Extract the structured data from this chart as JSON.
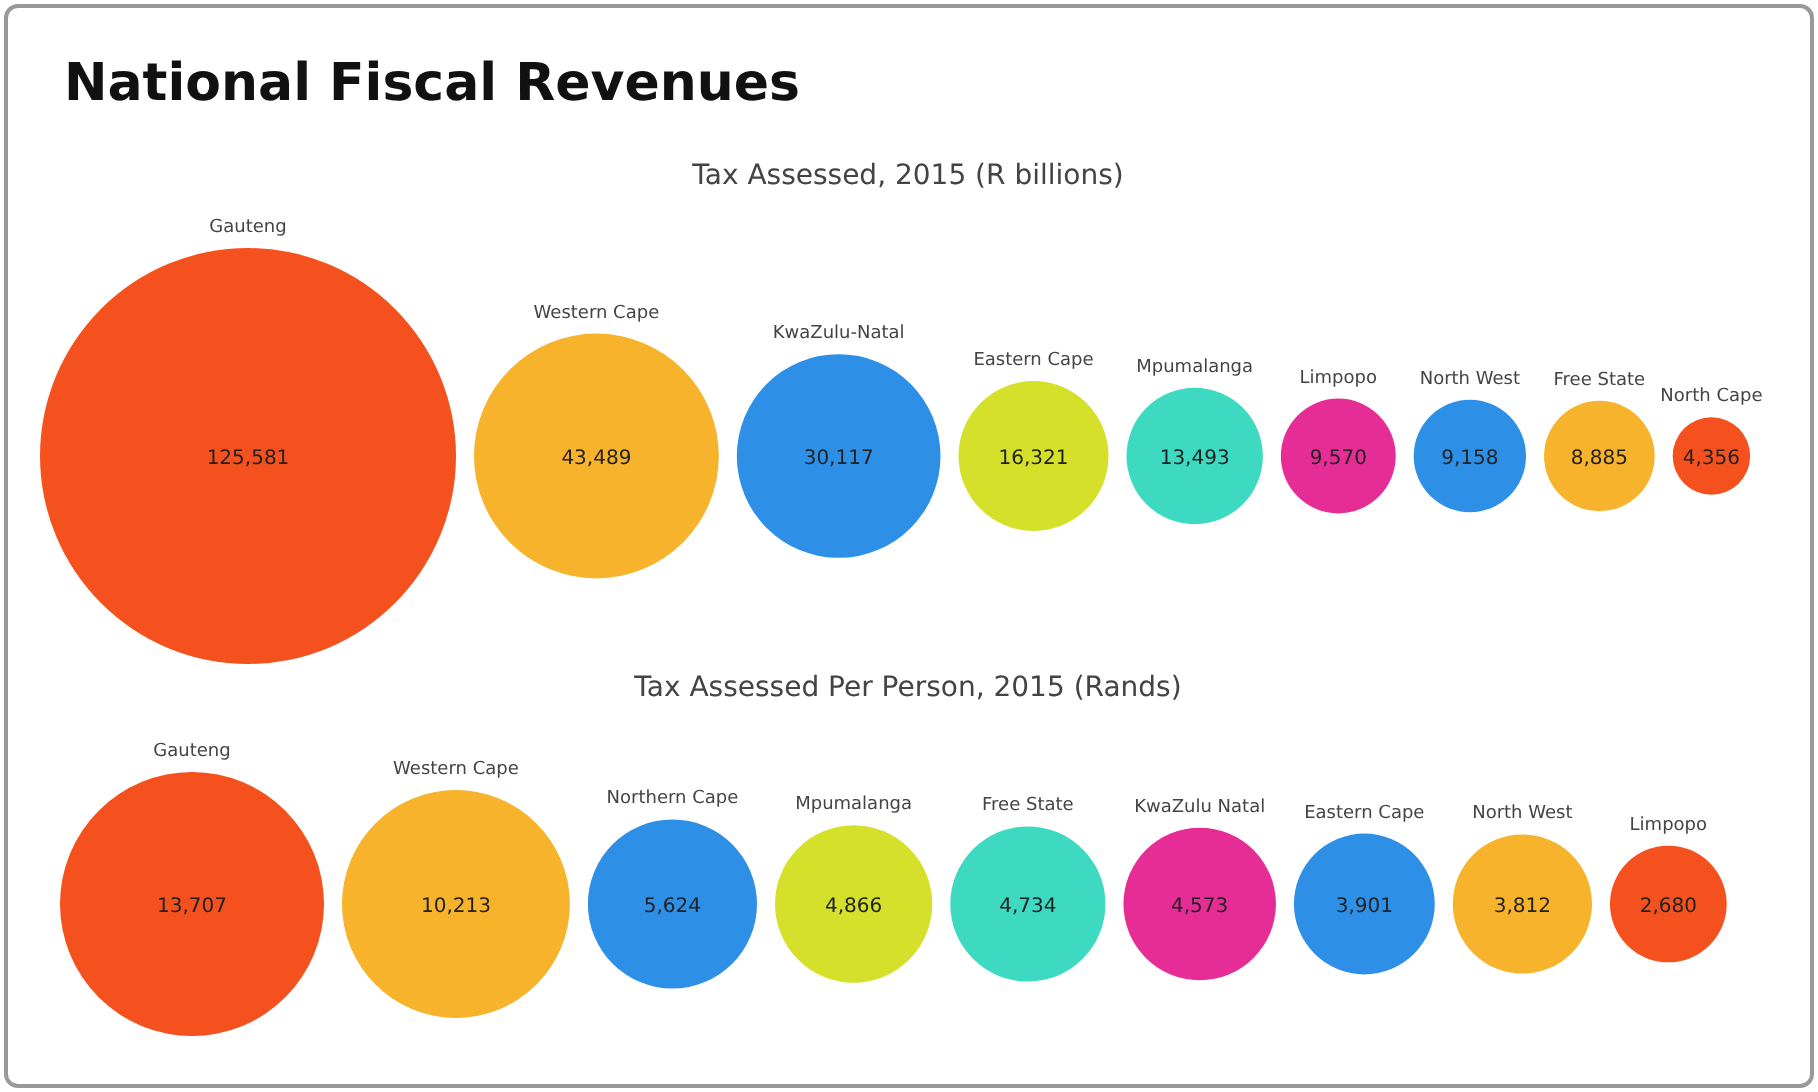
{
  "chart_data": [
    {
      "type": "other",
      "title": "National Fiscal Revenues",
      "subtitle": "Tax Assessed, 2015 (R billions)",
      "categories": [
        "Gauteng",
        "Western Cape",
        "KwaZulu-Natal",
        "Eastern Cape",
        "Mpumalanga",
        "Limpopo",
        "North West",
        "Free State",
        "North Cape"
      ],
      "values": [
        125581,
        43489,
        30117,
        16321,
        13493,
        9570,
        9158,
        8885,
        4356
      ],
      "value_labels": [
        "125,581",
        "43,489",
        "30,117",
        "16,321",
        "13,493",
        "9,570",
        "9,158",
        "8,885",
        "4,356"
      ],
      "colors": [
        "#f4511e",
        "#f6b32b",
        "#2e8fe6",
        "#d4e02a",
        "#3dd9c1",
        "#e62d95",
        "#2e8fe6",
        "#f6b32b",
        "#f4511e"
      ]
    },
    {
      "type": "other",
      "title": "Tax Assessed Per Person, 2015 (Rands)",
      "categories": [
        "Gauteng",
        "Western Cape",
        "Northern Cape",
        "Mpumalanga",
        "Free State",
        "KwaZulu Natal",
        "Eastern Cape",
        "North West",
        "Limpopo"
      ],
      "values": [
        13707,
        10213,
        5624,
        4866,
        4734,
        4573,
        3901,
        3812,
        2680
      ],
      "value_labels": [
        "13,707",
        "10,213",
        "5,624",
        "4,866",
        "4,734",
        "4,573",
        "3,901",
        "3,812",
        "2,680"
      ],
      "colors": [
        "#f4511e",
        "#f6b32b",
        "#2e8fe6",
        "#d4e02a",
        "#3dd9c1",
        "#e62d95",
        "#2e8fe6",
        "#f6b32b",
        "#f4511e"
      ]
    }
  ]
}
